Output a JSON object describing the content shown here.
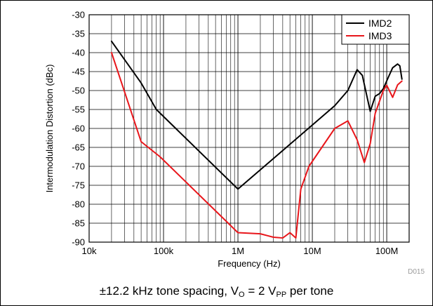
{
  "chart_data": {
    "type": "line",
    "title": "",
    "xlabel": "Frequency (Hz)",
    "ylabel": "Intermodulation Distortion (dBc)",
    "x_scale": "log",
    "xlim": [
      10000,
      200000000
    ],
    "ylim": [
      -90,
      -30
    ],
    "x_ticks": [
      10000,
      100000,
      1000000,
      10000000,
      100000000
    ],
    "x_tick_labels": [
      "10k",
      "100k",
      "1M",
      "10M",
      "100M"
    ],
    "y_ticks": [
      -90,
      -85,
      -80,
      -75,
      -70,
      -65,
      -60,
      -55,
      -50,
      -45,
      -40,
      -35,
      -30
    ],
    "y_tick_labels": [
      "-90",
      "-85",
      "-80",
      "-75",
      "-70",
      "-65",
      "-60",
      "-55",
      "-50",
      "-45",
      "-40",
      "-35",
      "-30"
    ],
    "grid": true,
    "legend_position": "top-right",
    "series": [
      {
        "name": "IMD2",
        "color": "#000000",
        "points": [
          [
            20000,
            -37
          ],
          [
            50000,
            -48
          ],
          [
            80000,
            -55
          ],
          [
            1000000,
            -76
          ],
          [
            20000000,
            -54
          ],
          [
            30000000,
            -50
          ],
          [
            40000000,
            -44.5
          ],
          [
            47000000,
            -46
          ],
          [
            60000000,
            -55.5
          ],
          [
            70000000,
            -51.5
          ],
          [
            80000000,
            -50.8
          ],
          [
            90000000,
            -49.5
          ],
          [
            105000000,
            -46.5
          ],
          [
            120000000,
            -44
          ],
          [
            140000000,
            -43
          ],
          [
            150000000,
            -43.5
          ],
          [
            160000000,
            -47
          ]
        ]
      },
      {
        "name": "IMD3",
        "color": "#e8161b",
        "points": [
          [
            20000,
            -40
          ],
          [
            50000,
            -63.5
          ],
          [
            90000,
            -67.5
          ],
          [
            1000000,
            -87.5
          ],
          [
            2000000,
            -87.8
          ],
          [
            3000000,
            -88.7
          ],
          [
            4000000,
            -88.9
          ],
          [
            5000000,
            -87.5
          ],
          [
            6000000,
            -88.9
          ],
          [
            7000000,
            -76
          ],
          [
            9000000,
            -70
          ],
          [
            20000000,
            -60
          ],
          [
            30000000,
            -58
          ],
          [
            40000000,
            -63
          ],
          [
            50000000,
            -69
          ],
          [
            60000000,
            -64
          ],
          [
            70000000,
            -56
          ],
          [
            90000000,
            -50
          ],
          [
            100000000,
            -48.6
          ],
          [
            120000000,
            -51.8
          ],
          [
            140000000,
            -48.5
          ],
          [
            160000000,
            -47.5
          ]
        ]
      }
    ]
  },
  "figure_id": "D015",
  "caption": {
    "prefix": "±12.2 kHz tone spacing, V",
    "sub1": "O",
    "mid": " = 2 V",
    "sub2": "PP",
    "suffix": " per tone"
  }
}
